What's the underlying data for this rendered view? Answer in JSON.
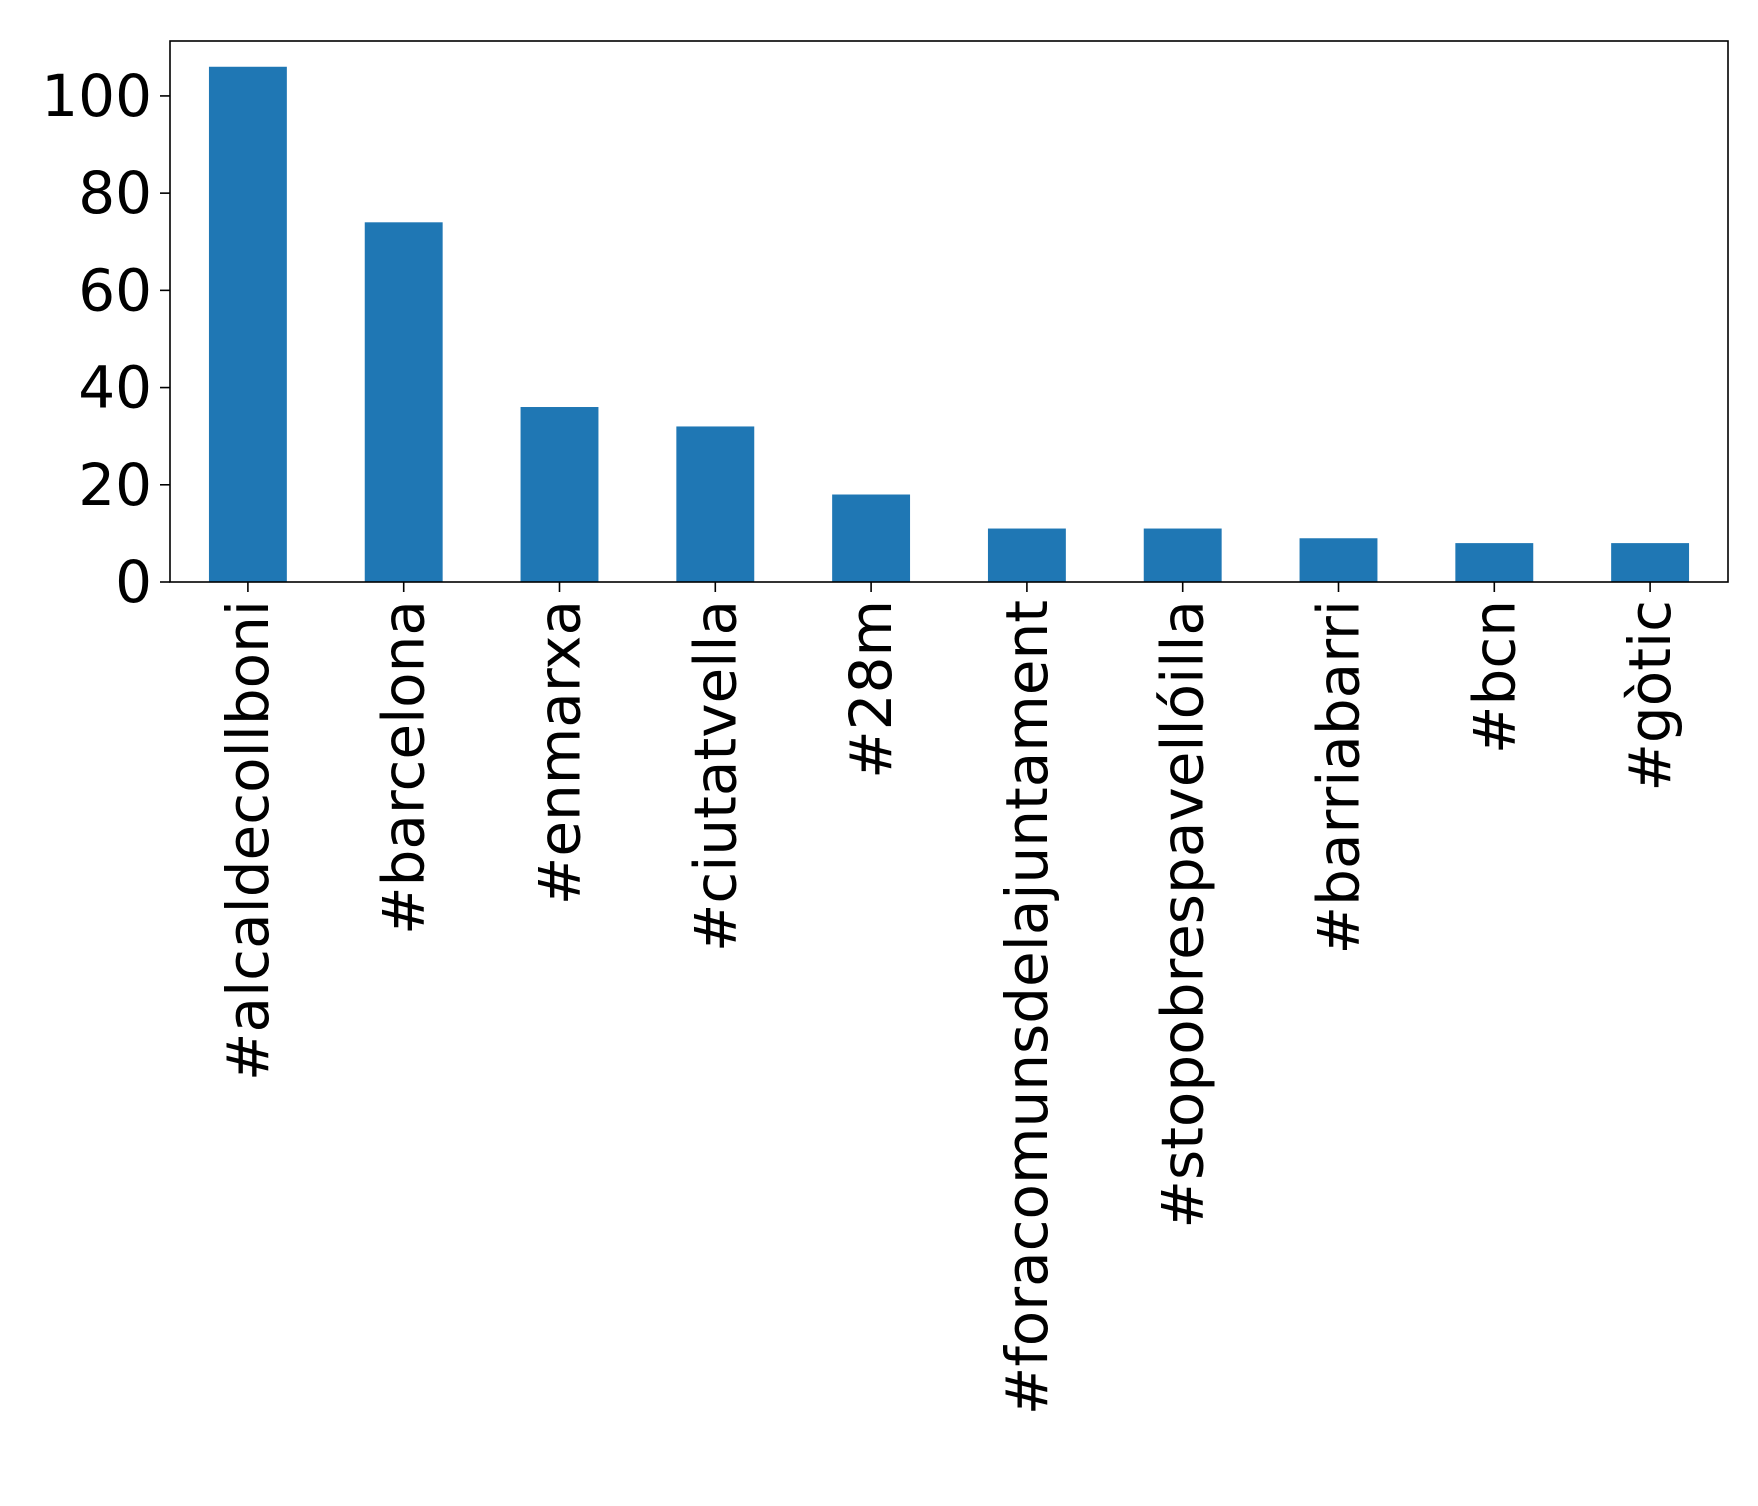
{
  "chart_data": {
    "type": "bar",
    "title": "",
    "xlabel": "",
    "ylabel": "",
    "categories": [
      "#alcaldecollboni",
      "#barcelona",
      "#enmarxa",
      "#ciutatvella",
      "#28m",
      "#foracomunsdelajuntament",
      "#stopobrespavellóilla",
      "#barriabarri",
      "#bcn",
      "#gòtic"
    ],
    "values": [
      106,
      74,
      36,
      32,
      18,
      11,
      11,
      9,
      8,
      8
    ],
    "ylim": [
      0,
      111.3
    ],
    "yticks": [
      0,
      20,
      40,
      60,
      80,
      100
    ],
    "grid": false,
    "legend": "none",
    "bar_color": "#1f77b4"
  }
}
